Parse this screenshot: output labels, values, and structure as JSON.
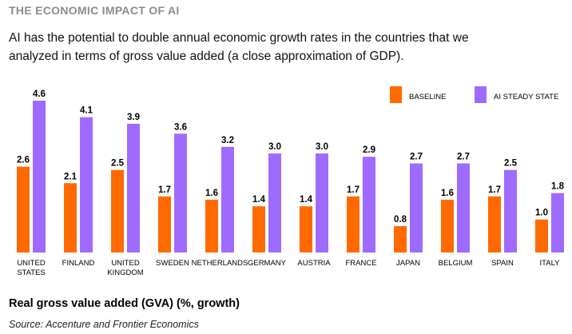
{
  "header": {
    "kicker": "THE ECONOMIC IMPACT OF AI",
    "subtitle": "AI has the potential to double annual economic growth rates in the countries that we analyzed in terms of gross value added (a close approximation of GDP)."
  },
  "footer": {
    "chart_title": "Real gross value added (GVA) (%, growth)",
    "source": "Source: Accenture and Frontier Economics"
  },
  "colors": {
    "baseline": "#ff6a00",
    "ai_steady_state": "#9f6bff"
  },
  "chart_data": {
    "type": "bar",
    "title": "Real gross value added (GVA) (%, growth)",
    "categories": [
      "UNITED STATES",
      "FINLAND",
      "UNITED KINGDOM",
      "SWEDEN",
      "NETHERLANDS",
      "GERMANY",
      "AUSTRIA",
      "FRANCE",
      "JAPAN",
      "BELGIUM",
      "SPAIN",
      "ITALY"
    ],
    "category_lines": [
      [
        "UNITED",
        "STATES"
      ],
      [
        "FINLAND"
      ],
      [
        "UNITED",
        "KINGDOM"
      ],
      [
        "SWEDEN"
      ],
      [
        "NETHERLANDS"
      ],
      [
        "GERMANY"
      ],
      [
        "AUSTRIA"
      ],
      [
        "FRANCE"
      ],
      [
        "JAPAN"
      ],
      [
        "BELGIUM"
      ],
      [
        "SPAIN"
      ],
      [
        "ITALY"
      ]
    ],
    "series": [
      {
        "name": "BASELINE",
        "values": [
          2.6,
          2.1,
          2.5,
          1.7,
          1.6,
          1.4,
          1.4,
          1.7,
          0.8,
          1.6,
          1.7,
          1.0
        ]
      },
      {
        "name": "AI STEADY STATE",
        "values": [
          4.6,
          4.1,
          3.9,
          3.6,
          3.2,
          3.0,
          3.0,
          2.9,
          2.7,
          2.7,
          2.5,
          1.8
        ]
      }
    ],
    "xlabel": "",
    "ylabel": "",
    "ylim": [
      0,
      4.6
    ],
    "grid": false,
    "legend_position": "top-right",
    "value_labels": true
  }
}
